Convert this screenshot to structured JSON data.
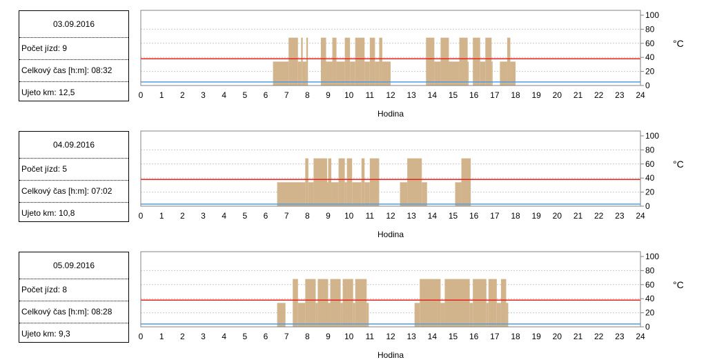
{
  "labels": {
    "trips": "Počet jízd:",
    "total_time": "Celkový čas [h:m]:",
    "distance": "Ujeto km:"
  },
  "days": [
    {
      "date": "03.09.2016",
      "trips": "9",
      "total_time": "08:32",
      "distance": "12,5"
    },
    {
      "date": "04.09.2016",
      "trips": "5",
      "total_time": "07:02",
      "distance": "10,8"
    },
    {
      "date": "05.09.2016",
      "trips": "8",
      "total_time": "08:28",
      "distance": "9,3"
    }
  ],
  "chart_data": [
    {
      "type": "bar",
      "xlabel": "Hodina",
      "ylabel": "°C",
      "x_ticks": [
        0,
        1,
        2,
        3,
        4,
        5,
        6,
        7,
        8,
        9,
        10,
        11,
        12,
        13,
        14,
        15,
        16,
        17,
        18,
        19,
        20,
        21,
        22,
        23,
        24
      ],
      "y_ticks": [
        0,
        20,
        40,
        60,
        80,
        100
      ],
      "xlim": [
        0,
        24
      ],
      "ylim": [
        0,
        100
      ],
      "grid": true,
      "red_line": 38,
      "blue_line": 5,
      "colors": {
        "bars": "#d2b48c",
        "red": "#e8201c",
        "blue": "#4a9de8",
        "grid": "#c8c8c8"
      },
      "activity": [
        [
          6.35,
          7.1,
          34
        ],
        [
          7.1,
          7.55,
          68
        ],
        [
          7.55,
          7.7,
          34
        ],
        [
          7.7,
          7.78,
          68
        ],
        [
          7.78,
          7.95,
          34
        ],
        [
          7.95,
          8.03,
          68
        ],
        [
          8.65,
          8.9,
          68
        ],
        [
          8.9,
          9.2,
          34
        ],
        [
          9.2,
          9.4,
          68
        ],
        [
          9.4,
          9.8,
          34
        ],
        [
          9.8,
          10.05,
          68
        ],
        [
          10.05,
          10.3,
          34
        ],
        [
          10.3,
          10.75,
          68
        ],
        [
          10.75,
          11.0,
          34
        ],
        [
          11.0,
          11.25,
          68
        ],
        [
          11.25,
          11.45,
          34
        ],
        [
          11.45,
          11.6,
          68
        ],
        [
          11.6,
          12.0,
          34
        ],
        [
          13.7,
          14.1,
          68
        ],
        [
          14.1,
          14.4,
          34
        ],
        [
          14.4,
          14.8,
          68
        ],
        [
          14.8,
          15.3,
          34
        ],
        [
          15.3,
          15.7,
          68
        ],
        [
          15.7,
          15.75,
          34
        ],
        [
          15.95,
          16.3,
          68
        ],
        [
          16.3,
          16.55,
          34
        ],
        [
          16.55,
          16.85,
          68
        ],
        [
          16.85,
          16.9,
          34
        ],
        [
          17.25,
          17.6,
          34
        ],
        [
          17.6,
          17.75,
          68
        ],
        [
          17.75,
          18.0,
          34
        ]
      ]
    },
    {
      "type": "bar",
      "xlabel": "Hodina",
      "ylabel": "°C",
      "x_ticks": [
        0,
        1,
        2,
        3,
        4,
        5,
        6,
        7,
        8,
        9,
        10,
        11,
        12,
        13,
        14,
        15,
        16,
        17,
        18,
        19,
        20,
        21,
        22,
        23,
        24
      ],
      "y_ticks": [
        0,
        20,
        40,
        60,
        80,
        100
      ],
      "xlim": [
        0,
        24
      ],
      "ylim": [
        0,
        100
      ],
      "grid": true,
      "red_line": 38,
      "blue_line": 3,
      "colors": {
        "bars": "#d2b48c",
        "red": "#e8201c",
        "blue": "#4a9de8",
        "grid": "#c8c8c8"
      },
      "activity": [
        [
          6.55,
          7.9,
          34
        ],
        [
          7.9,
          8.05,
          68
        ],
        [
          8.05,
          8.3,
          34
        ],
        [
          8.3,
          8.95,
          68
        ],
        [
          8.95,
          9.0,
          34
        ],
        [
          9.0,
          9.15,
          68
        ],
        [
          9.15,
          9.5,
          34
        ],
        [
          9.5,
          9.8,
          68
        ],
        [
          9.8,
          9.9,
          34
        ],
        [
          9.9,
          10.15,
          68
        ],
        [
          10.15,
          10.6,
          34
        ],
        [
          10.6,
          10.75,
          68
        ],
        [
          10.75,
          11.0,
          34
        ],
        [
          11.0,
          11.45,
          68
        ],
        [
          12.45,
          12.8,
          34
        ],
        [
          12.8,
          13.5,
          68
        ],
        [
          13.5,
          13.75,
          34
        ],
        [
          15.1,
          15.4,
          34
        ],
        [
          15.4,
          15.85,
          68
        ]
      ]
    },
    {
      "type": "bar",
      "xlabel": "Hodina",
      "ylabel": "°C",
      "x_ticks": [
        0,
        1,
        2,
        3,
        4,
        5,
        6,
        7,
        8,
        9,
        10,
        11,
        12,
        13,
        14,
        15,
        16,
        17,
        18,
        19,
        20,
        21,
        22,
        23,
        24
      ],
      "y_ticks": [
        0,
        20,
        40,
        60,
        80,
        100
      ],
      "xlim": [
        0,
        24
      ],
      "ylim": [
        0,
        100
      ],
      "grid": true,
      "red_line": 38,
      "blue_line": 4,
      "colors": {
        "bars": "#d2b48c",
        "red": "#e8201c",
        "blue": "#4a9de8",
        "grid": "#c8c8c8"
      },
      "activity": [
        [
          6.55,
          6.95,
          34
        ],
        [
          7.3,
          7.55,
          68
        ],
        [
          7.55,
          7.9,
          34
        ],
        [
          7.9,
          8.4,
          68
        ],
        [
          8.4,
          8.5,
          34
        ],
        [
          8.5,
          9.0,
          68
        ],
        [
          9.0,
          9.1,
          34
        ],
        [
          9.1,
          9.6,
          68
        ],
        [
          9.6,
          9.7,
          34
        ],
        [
          9.7,
          10.2,
          68
        ],
        [
          10.2,
          10.3,
          34
        ],
        [
          10.3,
          10.85,
          68
        ],
        [
          10.85,
          10.95,
          34
        ],
        [
          13.15,
          13.4,
          34
        ],
        [
          13.4,
          14.4,
          68
        ],
        [
          14.4,
          14.6,
          34
        ],
        [
          14.6,
          15.8,
          68
        ],
        [
          15.8,
          15.95,
          34
        ],
        [
          15.95,
          16.6,
          68
        ],
        [
          16.6,
          16.7,
          34
        ],
        [
          16.7,
          17.1,
          68
        ],
        [
          17.1,
          17.3,
          34
        ],
        [
          17.3,
          17.55,
          68
        ],
        [
          17.55,
          17.65,
          34
        ]
      ]
    }
  ]
}
